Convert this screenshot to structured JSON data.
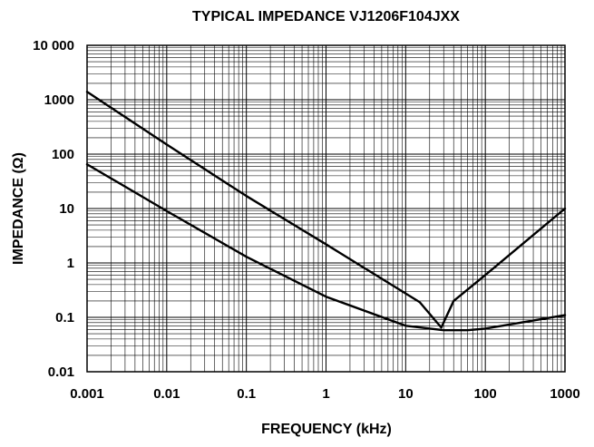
{
  "chart_data": {
    "type": "line",
    "title": "TYPICAL IMPEDANCE VJ1206F104JXX",
    "xlabel": "FREQUENCY (kHz)",
    "ylabel": "IMPEDANCE (Ω)",
    "x_scale": "log",
    "y_scale": "log",
    "xlim": [
      0.001,
      1000
    ],
    "ylim": [
      0.01,
      10000
    ],
    "x_tick_labels": [
      "0.001",
      "0.01",
      "0.1",
      "1",
      "10",
      "100",
      "1000"
    ],
    "y_tick_labels": [
      "10 000",
      "1000",
      "100",
      "10",
      "1",
      "0.1",
      "0.01"
    ],
    "grid": true,
    "series": [
      {
        "x": [
          0.001,
          0.01,
          0.1,
          1,
          15,
          28,
          40,
          100,
          1000
        ],
        "y": [
          1400,
          150,
          17,
          2.2,
          0.19,
          0.065,
          0.2,
          0.6,
          10
        ]
      },
      {
        "x": [
          0.001,
          0.01,
          0.1,
          1,
          10,
          30,
          60,
          100,
          1000
        ],
        "y": [
          65,
          9,
          1.3,
          0.24,
          0.07,
          0.058,
          0.058,
          0.062,
          0.11
        ]
      }
    ]
  }
}
